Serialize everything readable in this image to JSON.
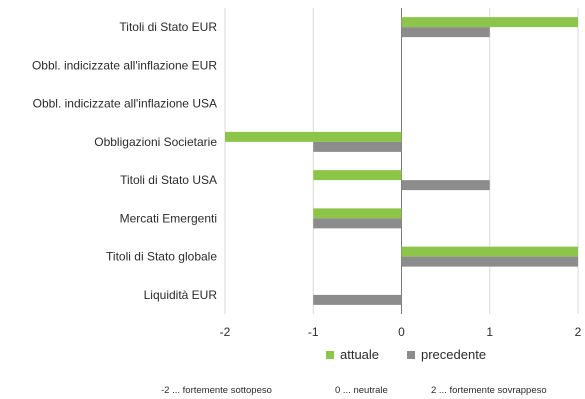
{
  "chart_data": {
    "type": "bar",
    "orientation": "horizontal",
    "categories": [
      "Titoli di Stato EUR",
      "Obbl. indicizzate all'inflazione EUR",
      "Obbl. indicizzate all'inflazione USA",
      "Obbligazioni Societarie",
      "Titoli di Stato USA",
      "Mercati Emergenti",
      "Titoli di Stato globale",
      "Liquidità EUR"
    ],
    "series": [
      {
        "name": "attuale",
        "color": "#8cc54a",
        "values": [
          2,
          0,
          0,
          -2,
          -1,
          -1,
          2,
          0
        ]
      },
      {
        "name": "precedente",
        "color": "#8c8c8c",
        "values": [
          1,
          0,
          0,
          -1,
          1,
          -1,
          2,
          -1
        ]
      }
    ],
    "xlim": [
      -2,
      2
    ],
    "xticks": [
      "-2",
      "-1",
      "0",
      "1",
      "2"
    ],
    "grid": "vertical",
    "legend_position": "bottom"
  },
  "footnotes": [
    "-2 ... fortemente sottopeso",
    "0 ... neutrale",
    "2 ... fortemente sovrappeso"
  ]
}
